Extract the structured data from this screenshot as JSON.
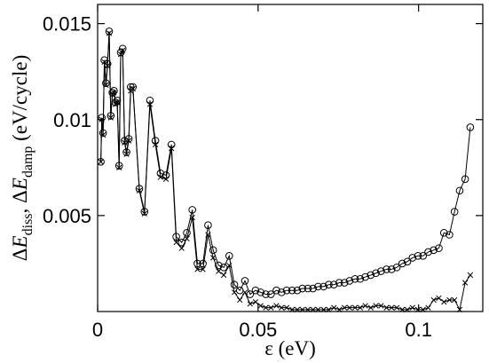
{
  "chart_data": {
    "type": "line",
    "xlabel": "ε (eV)",
    "ylabel_html": "ΔE_diss, ΔE_damp (eV/cycle)",
    "ylabel_parts": {
      "delta": "Δ",
      "E": "E",
      "sub1": "diss",
      "sep": ", ",
      "sub2": "damp",
      "unit": " (eV/cycle)"
    },
    "xlim": [
      0,
      0.12
    ],
    "ylim": [
      0,
      0.016
    ],
    "x_ticks": [
      {
        "value": 0,
        "label": "0"
      },
      {
        "value": 0.05,
        "label": "0.05"
      },
      {
        "value": 0.1,
        "label": "0.1"
      }
    ],
    "y_ticks": [
      {
        "value": 0.005,
        "label": "0.005"
      },
      {
        "value": 0.01,
        "label": "0.01"
      },
      {
        "value": 0.015,
        "label": "0.015"
      }
    ],
    "grid": false,
    "colors": {
      "line": "#000000",
      "frame": "#000000",
      "background": "#ffffff"
    },
    "series": [
      {
        "marker": "circle",
        "x": [
          0.001,
          0.0013,
          0.0017,
          0.0021,
          0.0026,
          0.0031,
          0.0036,
          0.0041,
          0.0046,
          0.0051,
          0.0056,
          0.0061,
          0.0067,
          0.0072,
          0.0078,
          0.0084,
          0.009,
          0.0097,
          0.0103,
          0.011,
          0.013,
          0.0146,
          0.0163,
          0.018,
          0.0196,
          0.0213,
          0.023,
          0.0245,
          0.0262,
          0.0278,
          0.0295,
          0.0311,
          0.0328,
          0.0344,
          0.036,
          0.0377,
          0.0393,
          0.041,
          0.0426,
          0.0443,
          0.0459,
          0.0475,
          0.0492,
          0.0508,
          0.0524,
          0.054,
          0.0557,
          0.0573,
          0.0589,
          0.0606,
          0.0622,
          0.0638,
          0.0655,
          0.0671,
          0.0687,
          0.0704,
          0.072,
          0.0736,
          0.0753,
          0.0769,
          0.0785,
          0.0802,
          0.0818,
          0.0834,
          0.0851,
          0.0867,
          0.0883,
          0.09,
          0.0916,
          0.0932,
          0.0949,
          0.0965,
          0.0981,
          0.0998,
          0.1014,
          0.103,
          0.1047,
          0.1063,
          0.1079,
          0.1096,
          0.1112,
          0.1128,
          0.1145,
          0.1161
        ],
        "y": [
          0.0078,
          0.0101,
          0.0093,
          0.0131,
          0.0119,
          0.0129,
          0.0146,
          0.0102,
          0.0114,
          0.0115,
          0.0109,
          0.011,
          0.0076,
          0.0135,
          0.0137,
          0.0089,
          0.0083,
          0.009,
          0.0117,
          0.0117,
          0.0064,
          0.0052,
          0.011,
          0.0089,
          0.0072,
          0.0071,
          0.0087,
          0.0039,
          0.0036,
          0.0041,
          0.0053,
          0.0025,
          0.0025,
          0.0045,
          0.0032,
          0.0024,
          0.0023,
          0.0029,
          0.0014,
          0.0011,
          0.0016,
          0.0009,
          0.0011,
          0.001,
          0.0009,
          0.0009,
          0.0011,
          0.001,
          0.0011,
          0.0011,
          0.0011,
          0.0012,
          0.0012,
          0.0012,
          0.0013,
          0.0013,
          0.0014,
          0.0014,
          0.0015,
          0.0015,
          0.0016,
          0.0017,
          0.0017,
          0.0018,
          0.0019,
          0.002,
          0.0021,
          0.0022,
          0.0022,
          0.0023,
          0.0025,
          0.0026,
          0.0028,
          0.0029,
          0.0029,
          0.0031,
          0.0032,
          0.0033,
          0.0041,
          0.004,
          0.0052,
          0.0063,
          0.0069,
          0.0096
        ]
      },
      {
        "marker": "x",
        "x": [
          0.001,
          0.0013,
          0.0017,
          0.0021,
          0.0026,
          0.0031,
          0.0036,
          0.0041,
          0.0046,
          0.0051,
          0.0056,
          0.0061,
          0.0067,
          0.0072,
          0.0078,
          0.0084,
          0.009,
          0.0097,
          0.0103,
          0.011,
          0.013,
          0.0146,
          0.0163,
          0.018,
          0.0196,
          0.0213,
          0.023,
          0.0245,
          0.0262,
          0.0278,
          0.0295,
          0.0311,
          0.0328,
          0.0344,
          0.036,
          0.0377,
          0.0393,
          0.041,
          0.0426,
          0.0443,
          0.0459,
          0.0475,
          0.0492,
          0.0508,
          0.0524,
          0.054,
          0.0557,
          0.0573,
          0.0589,
          0.0606,
          0.0622,
          0.0638,
          0.0655,
          0.0671,
          0.0687,
          0.0704,
          0.072,
          0.0736,
          0.0753,
          0.0769,
          0.0785,
          0.0802,
          0.0818,
          0.0834,
          0.0851,
          0.0867,
          0.0883,
          0.09,
          0.0916,
          0.0932,
          0.0949,
          0.0965,
          0.0981,
          0.0998,
          0.1014,
          0.103,
          0.1047,
          0.1063,
          0.1079,
          0.1096,
          0.1112,
          0.1128,
          0.1145,
          0.1161
        ],
        "y": [
          0.0078,
          0.01,
          0.0092,
          0.013,
          0.0118,
          0.0128,
          0.0145,
          0.0101,
          0.0113,
          0.0114,
          0.0108,
          0.0109,
          0.0075,
          0.0134,
          0.0136,
          0.0088,
          0.0082,
          0.0089,
          0.0115,
          0.0116,
          0.0063,
          0.0051,
          0.0108,
          0.0087,
          0.007,
          0.0069,
          0.0085,
          0.0036,
          0.0033,
          0.0038,
          0.0049,
          0.0022,
          0.0022,
          0.004,
          0.0028,
          0.0021,
          0.0019,
          0.0024,
          0.001,
          0.0006,
          0.001,
          0.0004,
          0.0005,
          0.0003,
          0.0002,
          0.0002,
          0.0003,
          0.0002,
          0.0002,
          0.0001,
          0.0001,
          0.0001,
          0.0001,
          0.0001,
          0.0001,
          0.0001,
          0.0001,
          0.0002,
          0.0001,
          0.0002,
          0.0002,
          0.0002,
          0.0002,
          0.0003,
          0.0002,
          0.0003,
          0.0003,
          0.0002,
          0.0002,
          0.0002,
          0.0001,
          0.0001,
          0.0002,
          0.0001,
          0.0001,
          0.0002,
          0.0006,
          0.0007,
          0.0005,
          0.0006,
          0.0006,
          0.0001,
          0.0015,
          0.0019
        ]
      }
    ]
  }
}
